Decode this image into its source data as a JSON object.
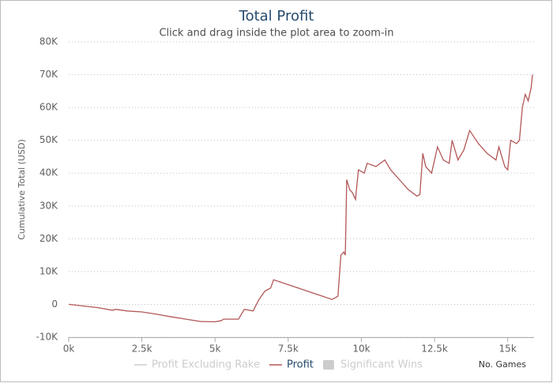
{
  "chart_data": {
    "type": "line",
    "title": "Total Profit",
    "subtitle": "Click and drag inside the plot area to zoom-in",
    "y_label": "Cumulative Total (USD)",
    "x_label": "No. Games",
    "xlim": [
      0,
      15900
    ],
    "ylim": [
      -10000,
      80000
    ],
    "xticks": [
      {
        "value": 0,
        "label": "0k"
      },
      {
        "value": 2500,
        "label": "2.5k"
      },
      {
        "value": 5000,
        "label": "5k"
      },
      {
        "value": 7500,
        "label": "7.5k"
      },
      {
        "value": 10000,
        "label": "10k"
      },
      {
        "value": 12500,
        "label": "12.5k"
      },
      {
        "value": 15000,
        "label": "15k"
      }
    ],
    "yticks": [
      {
        "value": -10000,
        "label": "-10K"
      },
      0,
      {
        "value": 10000,
        "label": "10K"
      },
      {
        "value": 20000,
        "label": "20K"
      },
      {
        "value": 30000,
        "label": "30K"
      },
      {
        "value": 40000,
        "label": "40K"
      },
      {
        "value": 50000,
        "label": "50K"
      },
      {
        "value": 60000,
        "label": "60K"
      },
      {
        "value": 70000,
        "label": "70K"
      },
      {
        "value": 80000,
        "label": "80K"
      }
    ],
    "grid": true,
    "x": [
      0,
      500,
      1000,
      1500,
      1600,
      2000,
      2500,
      3000,
      3500,
      4000,
      4500,
      5000,
      5200,
      5300,
      5800,
      6000,
      6300,
      6500,
      6700,
      6900,
      7000,
      7500,
      8000,
      8500,
      9000,
      9200,
      9300,
      9400,
      9450,
      9500,
      9600,
      9700,
      9800,
      9900,
      10100,
      10200,
      10500,
      10800,
      11000,
      11300,
      11600,
      11900,
      12000,
      12100,
      12200,
      12400,
      12600,
      12800,
      13000,
      13100,
      13300,
      13500,
      13700,
      14000,
      14300,
      14600,
      14700,
      14900,
      15000,
      15100,
      15300,
      15400,
      15500,
      15600,
      15700,
      15800,
      15850
    ],
    "series": [
      {
        "name": "Profit",
        "color": "#b35757",
        "values": [
          0,
          -500,
          -1000,
          -1800,
          -1500,
          -2000,
          -2300,
          -3000,
          -3800,
          -4500,
          -5200,
          -5300,
          -5000,
          -4500,
          -4500,
          -1500,
          -2000,
          1500,
          4000,
          5000,
          7500,
          6000,
          4500,
          3000,
          1500,
          2500,
          15000,
          16000,
          15000,
          38000,
          35000,
          34000,
          32000,
          41000,
          40000,
          43000,
          42000,
          44000,
          41000,
          38000,
          35000,
          33000,
          33500,
          46000,
          42000,
          40000,
          48000,
          44000,
          43000,
          50000,
          44000,
          47000,
          53000,
          49000,
          46000,
          44000,
          48000,
          42000,
          41000,
          50000,
          49000,
          50000,
          60000,
          64000,
          62000,
          66000,
          70000
        ]
      }
    ],
    "hidden_series": [
      {
        "name": "Profit Excluding Rake",
        "symbol": "line"
      },
      {
        "name": "Significant Wins",
        "symbol": "area"
      }
    ],
    "hidden_color": "#cccccc"
  }
}
